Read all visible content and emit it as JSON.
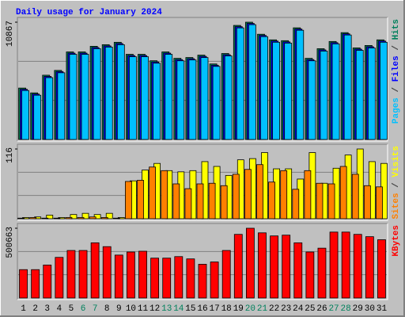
{
  "chart_data": [
    {
      "type": "bar",
      "title": "Daily usage for January 2024",
      "separator": "/",
      "ylim": [
        0,
        10867
      ],
      "yticks": [
        10867
      ],
      "series": [
        {
          "name": "Hits",
          "color": "#00805c",
          "values": [
            4764,
            4317,
            5955,
            6401,
            8113,
            8113,
            8634,
            8783,
            9006,
            7890,
            7890,
            7294,
            8113,
            7518,
            7592,
            7815,
            6997,
            7964,
            10569,
            10867,
            9750,
            9230,
            9155,
            10346,
            7518,
            8411,
            9081,
            9899,
            8485,
            8708,
            9230
          ]
        },
        {
          "name": "Files",
          "color": "#0000ff",
          "values": [
            4650,
            4210,
            5840,
            6290,
            8000,
            8000,
            8520,
            8670,
            8890,
            7780,
            7780,
            7180,
            8000,
            7400,
            7480,
            7700,
            6880,
            7850,
            10450,
            10750,
            9640,
            9120,
            9040,
            10230,
            7400,
            8300,
            8970,
            9790,
            8370,
            8590,
            9120
          ]
        },
        {
          "name": "Pages",
          "color": "#00c0ff",
          "values": [
            4540,
            4100,
            5730,
            6180,
            7890,
            7890,
            8410,
            8560,
            8780,
            7670,
            7670,
            7070,
            7890,
            7290,
            7370,
            7590,
            6770,
            7740,
            10340,
            10640,
            9530,
            9010,
            8930,
            10120,
            7290,
            8190,
            8860,
            9680,
            8260,
            8480,
            9010
          ]
        }
      ]
    },
    {
      "type": "bar",
      "separator": "/",
      "ylim": [
        0,
        116
      ],
      "yticks": [
        116
      ],
      "series": [
        {
          "name": "Visits",
          "color": "#ffff00",
          "values": [
            2,
            3,
            6,
            2,
            7,
            9,
            7,
            9,
            2,
            63,
            81,
            92,
            80,
            78,
            80,
            95,
            87,
            72,
            98,
            100,
            110,
            83,
            83,
            66,
            110,
            59,
            84,
            106,
            116,
            95,
            92
          ]
        },
        {
          "name": "Sites",
          "color": "#ff8000",
          "values": [
            1,
            2,
            1,
            1,
            2,
            2,
            3,
            2,
            1,
            62,
            64,
            86,
            80,
            58,
            50,
            58,
            59,
            55,
            74,
            82,
            90,
            61,
            80,
            49,
            80,
            59,
            58,
            87,
            74,
            55,
            53
          ]
        }
      ]
    },
    {
      "type": "bar",
      "ylim": [
        0,
        500663
      ],
      "yticks": [
        500663
      ],
      "categories": [
        "1",
        "2",
        "3",
        "4",
        "5",
        "6",
        "7",
        "8",
        "9",
        "10",
        "11",
        "12",
        "13",
        "14",
        "15",
        "16",
        "17",
        "18",
        "19",
        "20",
        "21",
        "22",
        "23",
        "24",
        "25",
        "26",
        "27",
        "28",
        "29",
        "30",
        "31"
      ],
      "category_colors": [
        "#000000",
        "#000000",
        "#000000",
        "#000000",
        "#000000",
        "#00805c",
        "#00805c",
        "#000000",
        "#000000",
        "#000000",
        "#000000",
        "#000000",
        "#00805c",
        "#00805c",
        "#000000",
        "#000000",
        "#000000",
        "#000000",
        "#000000",
        "#00805c",
        "#00805c",
        "#000000",
        "#000000",
        "#000000",
        "#000000",
        "#000000",
        "#00805c",
        "#00805c",
        "#000000",
        "#000000",
        "#000000"
      ],
      "series": [
        {
          "name": "KBytes",
          "color": "#ff0000",
          "values": [
            203566,
            203566,
            236573,
            291594,
            341111,
            341111,
            396128,
            368620,
            308100,
            330116,
            335617,
            286093,
            286093,
            297096,
            280592,
            242075,
            258580,
            341111,
            456644,
            500663,
            467654,
            445647,
            451148,
            396128,
            330116,
            357618,
            473155,
            473155,
            456644,
            440143,
            418136
          ]
        }
      ]
    }
  ]
}
